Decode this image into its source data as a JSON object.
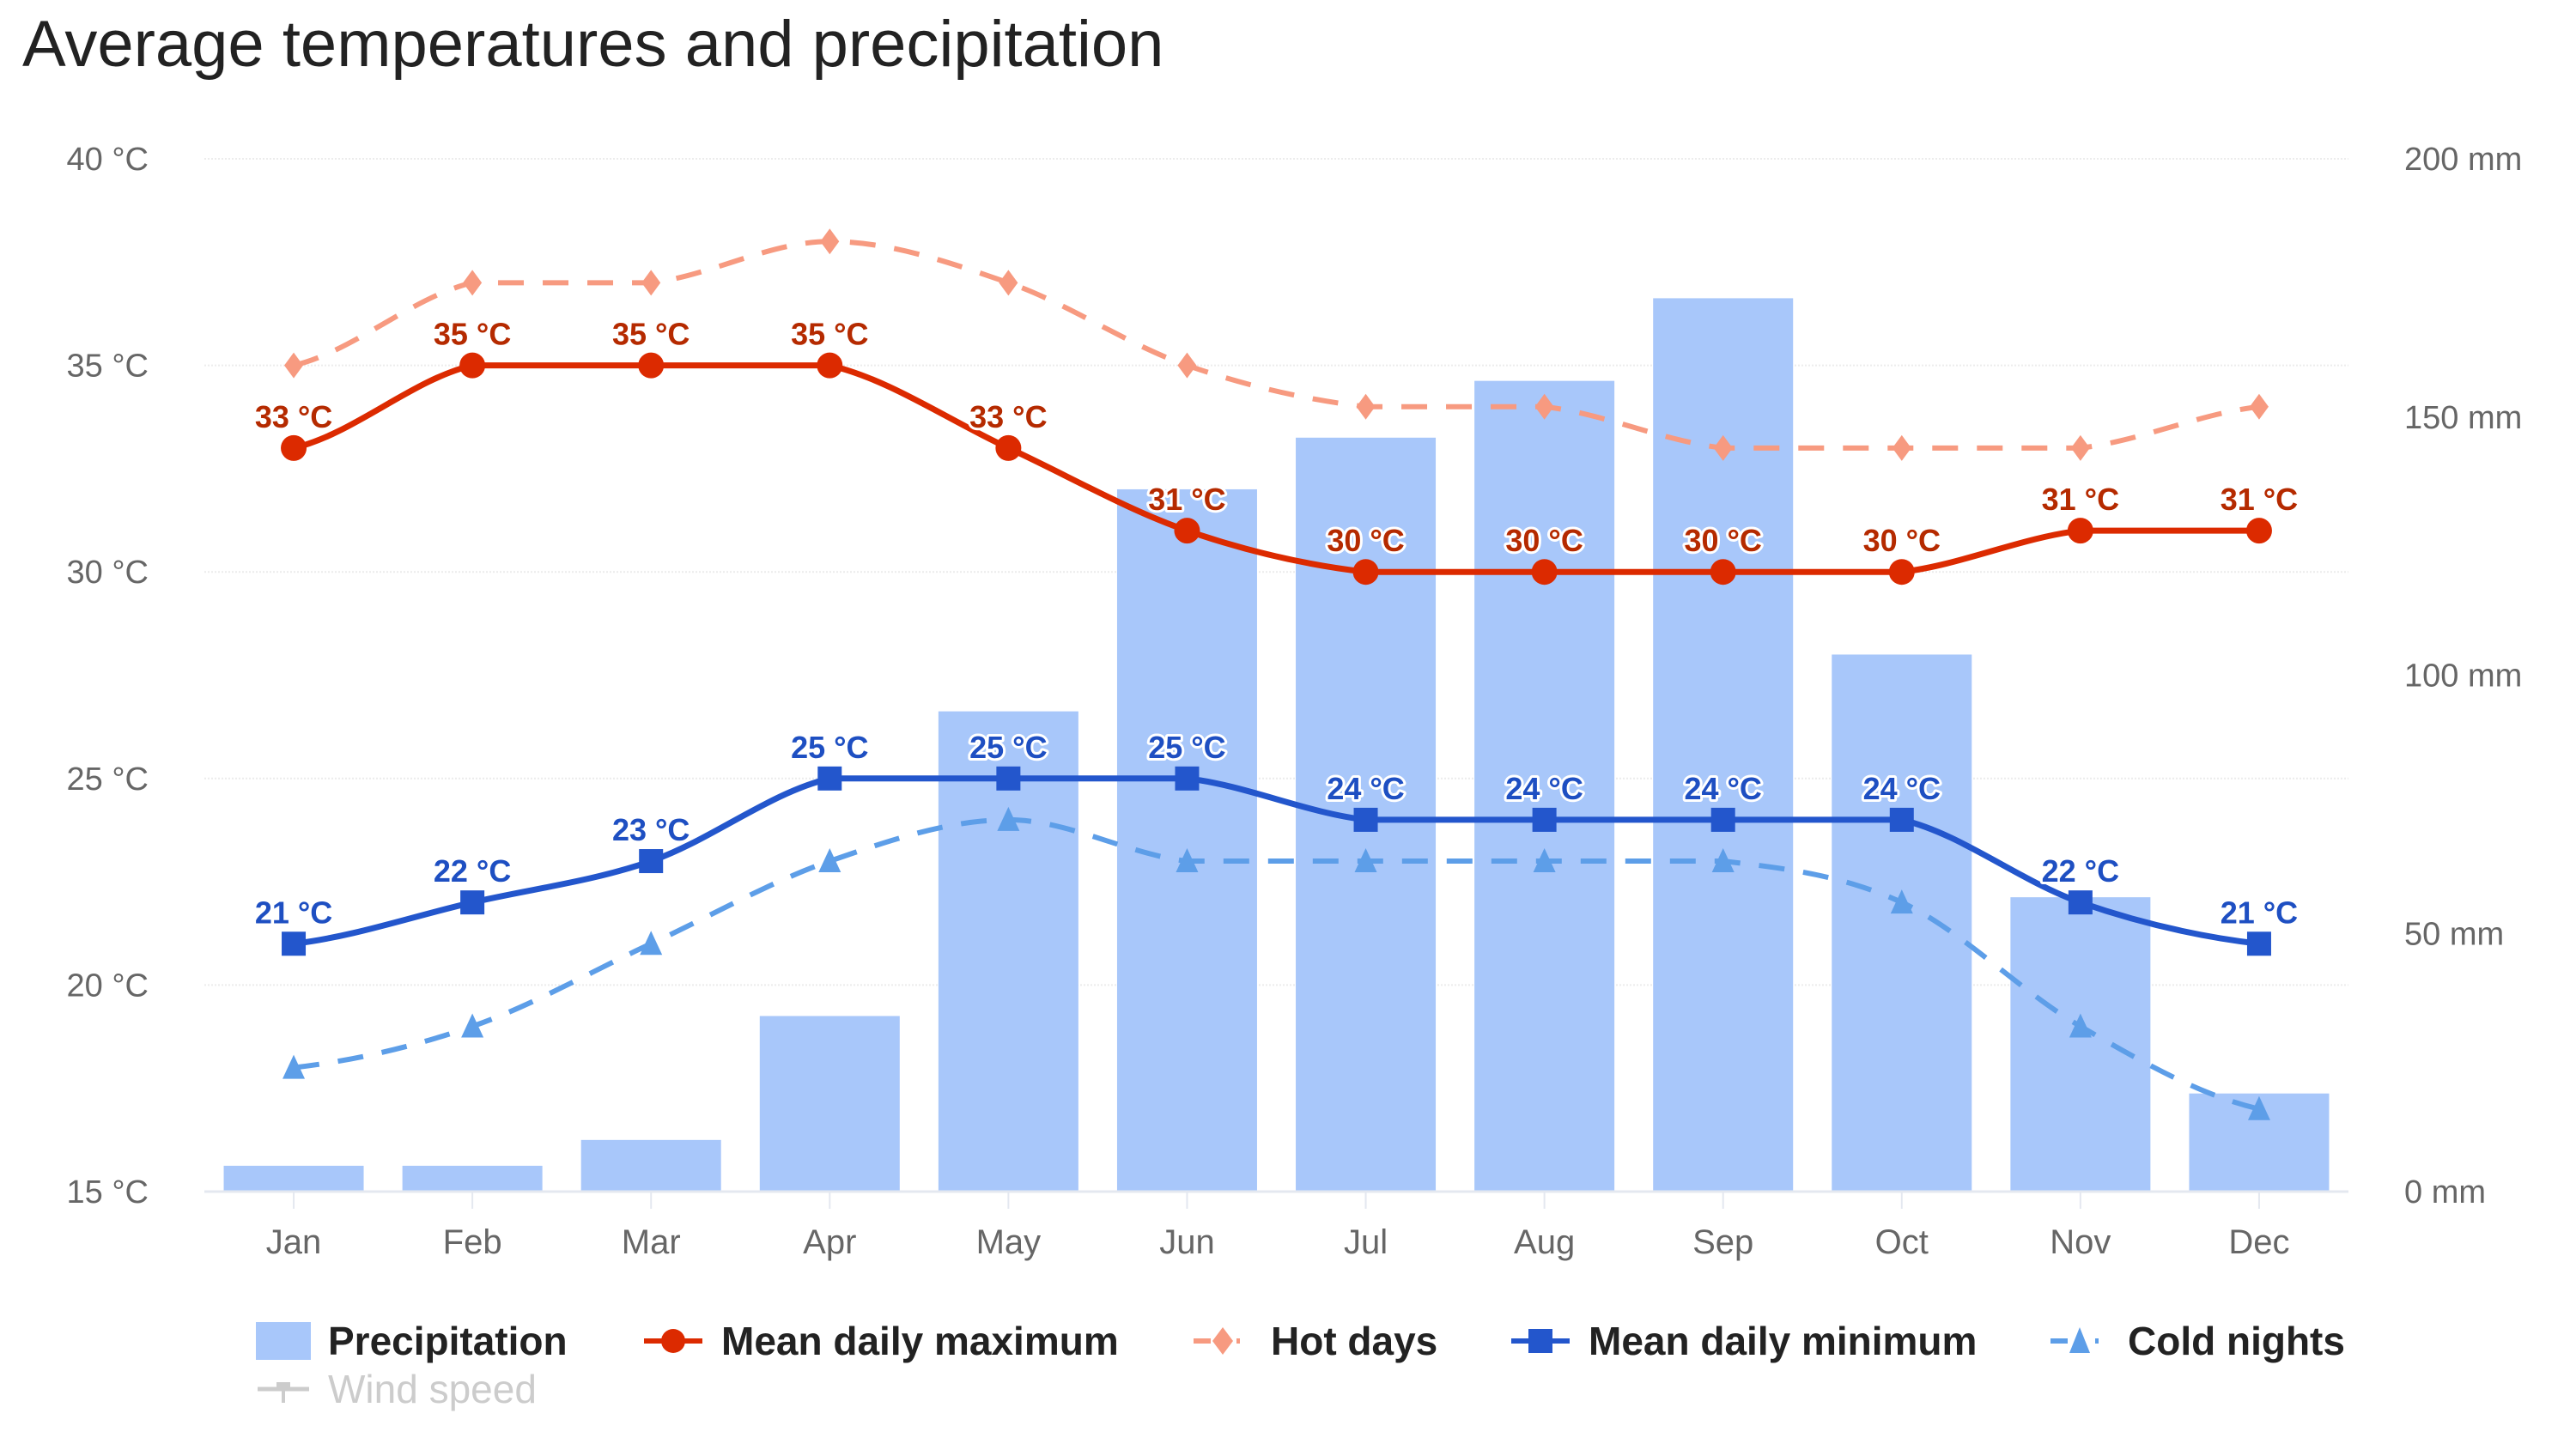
{
  "chart_data": {
    "type": "bar+line",
    "title": "Average temperatures and precipitation",
    "categories": [
      "Jan",
      "Feb",
      "Mar",
      "Apr",
      "May",
      "Jun",
      "Jul",
      "Aug",
      "Sep",
      "Oct",
      "Nov",
      "Dec"
    ],
    "y_left": {
      "label": "",
      "unit": "°C",
      "range": [
        15,
        40
      ],
      "ticks": [
        "40 °C",
        "35 °C",
        "30 °C",
        "25 °C",
        "20 °C",
        "15 °C"
      ],
      "tick_values": [
        40,
        35,
        30,
        25,
        20,
        15
      ]
    },
    "y_right": {
      "label": "",
      "unit": "mm",
      "range": [
        0,
        200
      ],
      "ticks": [
        "200 mm",
        "150 mm",
        "100 mm",
        "50 mm",
        "0 mm"
      ],
      "tick_values": [
        200,
        150,
        100,
        50,
        0
      ]
    },
    "grid": true,
    "legend_position": "bottom",
    "series": [
      {
        "name": "Precipitation",
        "type": "bar",
        "axis": "right",
        "color": "#a8c7fa",
        "values": [
          5,
          5,
          10,
          34,
          93,
          136,
          146,
          157,
          173,
          104,
          57,
          19
        ],
        "visible": true
      },
      {
        "name": "Mean daily maximum",
        "type": "line",
        "axis": "left",
        "color": "#dc2a00",
        "marker": "circle",
        "dash": "solid",
        "values": [
          33,
          35,
          35,
          35,
          33,
          31,
          30,
          30,
          30,
          30,
          31,
          31
        ],
        "data_labels": [
          "33 °C",
          "35 °C",
          "35 °C",
          "35 °C",
          "33 °C",
          "31 °C",
          "30 °C",
          "30 °C",
          "30 °C",
          "30 °C",
          "31 °C",
          "31 °C"
        ],
        "label_color": "#b52a00",
        "visible": true
      },
      {
        "name": "Hot days",
        "type": "line",
        "axis": "left",
        "color": "#f79a80",
        "marker": "diamond",
        "dash": "dashed",
        "values": [
          35,
          37,
          37,
          38,
          37,
          35,
          34,
          34,
          33,
          33,
          33,
          34
        ],
        "visible": true
      },
      {
        "name": "Mean daily minimum",
        "type": "line",
        "axis": "left",
        "color": "#2356cc",
        "marker": "square",
        "dash": "solid",
        "values": [
          21,
          22,
          23,
          25,
          25,
          25,
          24,
          24,
          24,
          24,
          22,
          21
        ],
        "data_labels": [
          "21 °C",
          "22 °C",
          "23 °C",
          "25 °C",
          "25 °C",
          "25 °C",
          "24 °C",
          "24 °C",
          "24 °C",
          "24 °C",
          "22 °C",
          "21 °C"
        ],
        "label_color": "#1e4fc2",
        "visible": true
      },
      {
        "name": "Cold nights",
        "type": "line",
        "axis": "left",
        "color": "#5d9ee8",
        "marker": "triangle",
        "dash": "dashed",
        "values": [
          18,
          19,
          21,
          23,
          24,
          23,
          23,
          23,
          23,
          22,
          19,
          17
        ],
        "visible": true
      },
      {
        "name": "Wind speed",
        "type": "line",
        "axis": "left",
        "color": "#cccccc",
        "marker": "none",
        "dash": "solid",
        "values": [],
        "visible": false
      }
    ]
  },
  "legend": {
    "items": [
      {
        "label": "Precipitation",
        "symbol": "bar-swatch"
      },
      {
        "label": "Mean daily maximum",
        "symbol": "circle-line"
      },
      {
        "label": "Hot days",
        "symbol": "diamond-dash"
      },
      {
        "label": "Mean daily minimum",
        "symbol": "square-line"
      },
      {
        "label": "Cold nights",
        "symbol": "triangle-dash"
      },
      {
        "label": "Wind speed",
        "symbol": "line-hidden"
      }
    ]
  }
}
